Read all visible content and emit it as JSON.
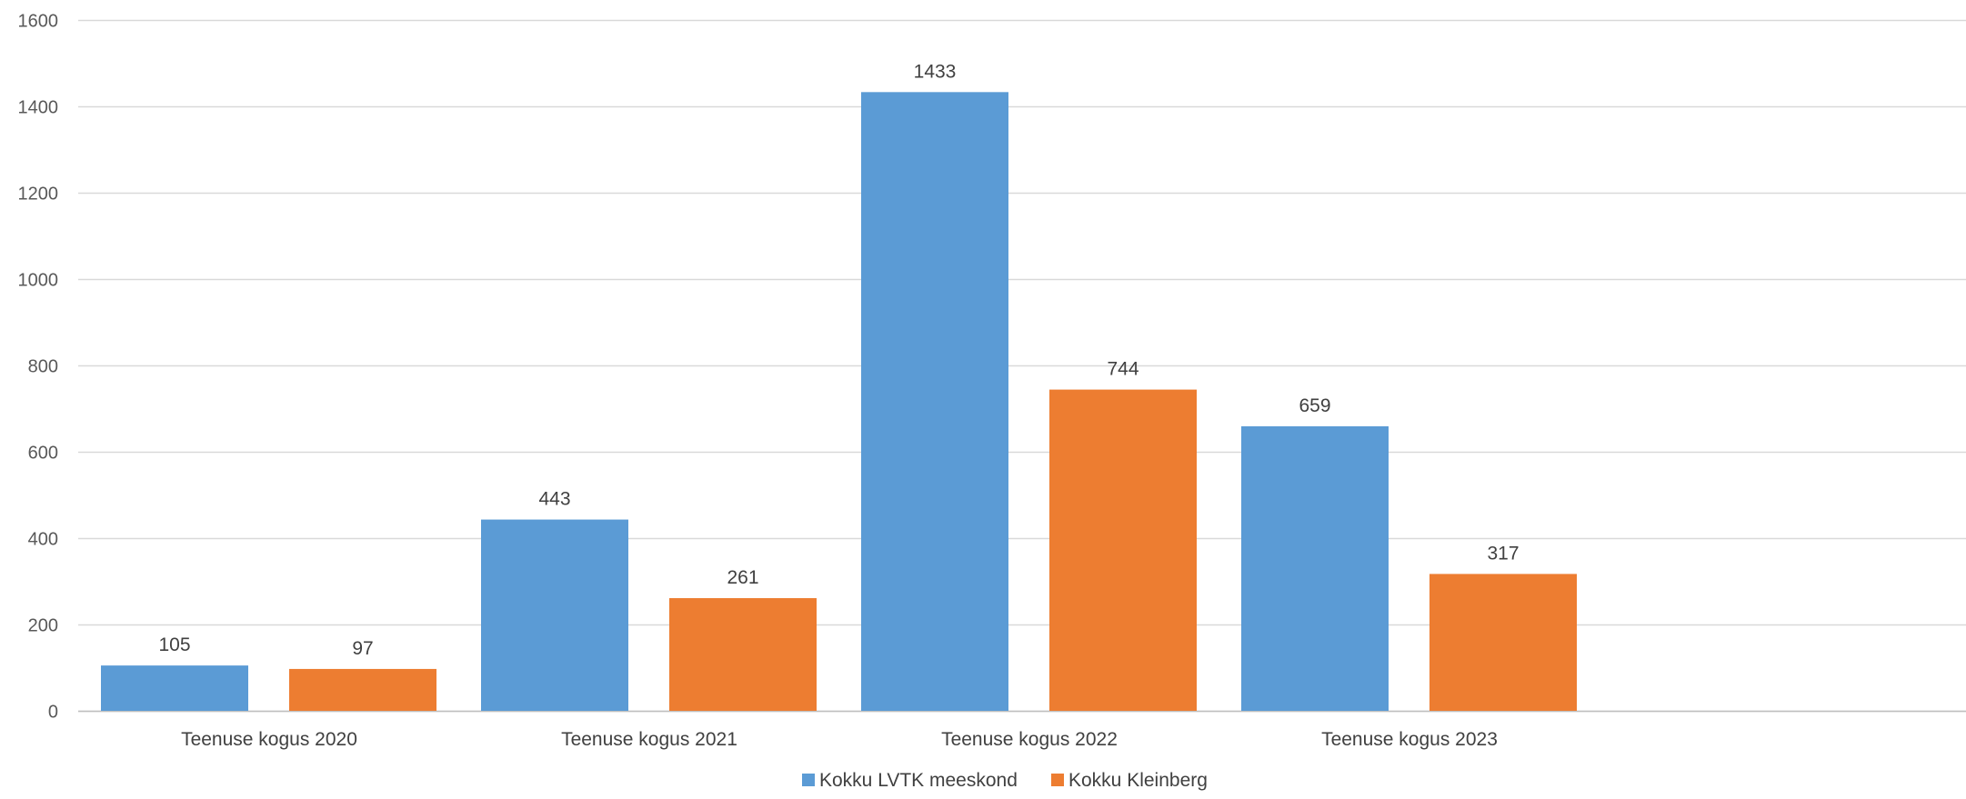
{
  "chart_data": {
    "type": "bar",
    "title": "",
    "xlabel": "",
    "ylabel": "",
    "categories": [
      "Teenuse kogus 2020",
      "Teenuse kogus 2021",
      "Teenuse kogus 2022",
      "Teenuse kogus 2023"
    ],
    "series": [
      {
        "name": "Kokku LVTK meeskond",
        "color": "#5B9BD5",
        "values": [
          105,
          443,
          1433,
          659
        ]
      },
      {
        "name": "Kokku Kleinberg",
        "color": "#ED7D31",
        "values": [
          97,
          261,
          744,
          317
        ]
      }
    ],
    "ylim": [
      0,
      1600
    ],
    "yticks": [
      0,
      200,
      400,
      600,
      800,
      1000,
      1200,
      1400,
      1600
    ],
    "grid": true,
    "gridline_color": "#D9D9D9",
    "legend_position": "bottom",
    "data_labels": true
  }
}
